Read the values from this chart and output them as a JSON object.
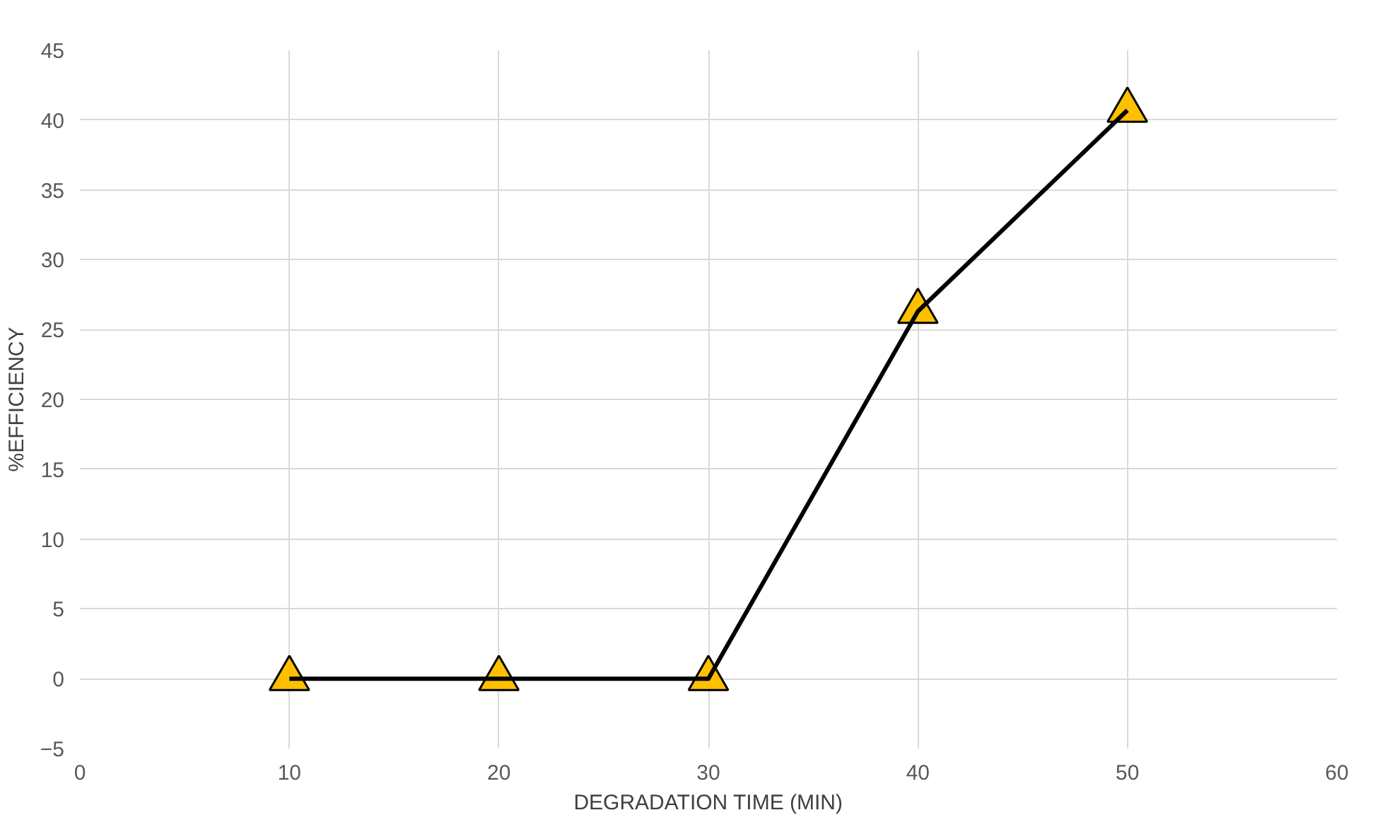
{
  "chart_data": {
    "type": "line",
    "xlabel": "DEGRADATION TIME (MIN)",
    "ylabel": "%EFFICIENCY",
    "x": [
      10,
      20,
      30,
      40,
      50
    ],
    "series": [
      {
        "color": "#000000",
        "values": [
          0,
          0,
          0,
          26.3,
          40.7
        ]
      }
    ],
    "marker": "triangle",
    "line_style": "solid",
    "grid": true,
    "xlim": [
      0,
      60
    ],
    "xticks": [
      0,
      10,
      20,
      30,
      40,
      50,
      60
    ],
    "ylim": [
      -5,
      45
    ],
    "yticks": [
      -5,
      0,
      5,
      10,
      15,
      20,
      25,
      30,
      35,
      40,
      45
    ]
  }
}
